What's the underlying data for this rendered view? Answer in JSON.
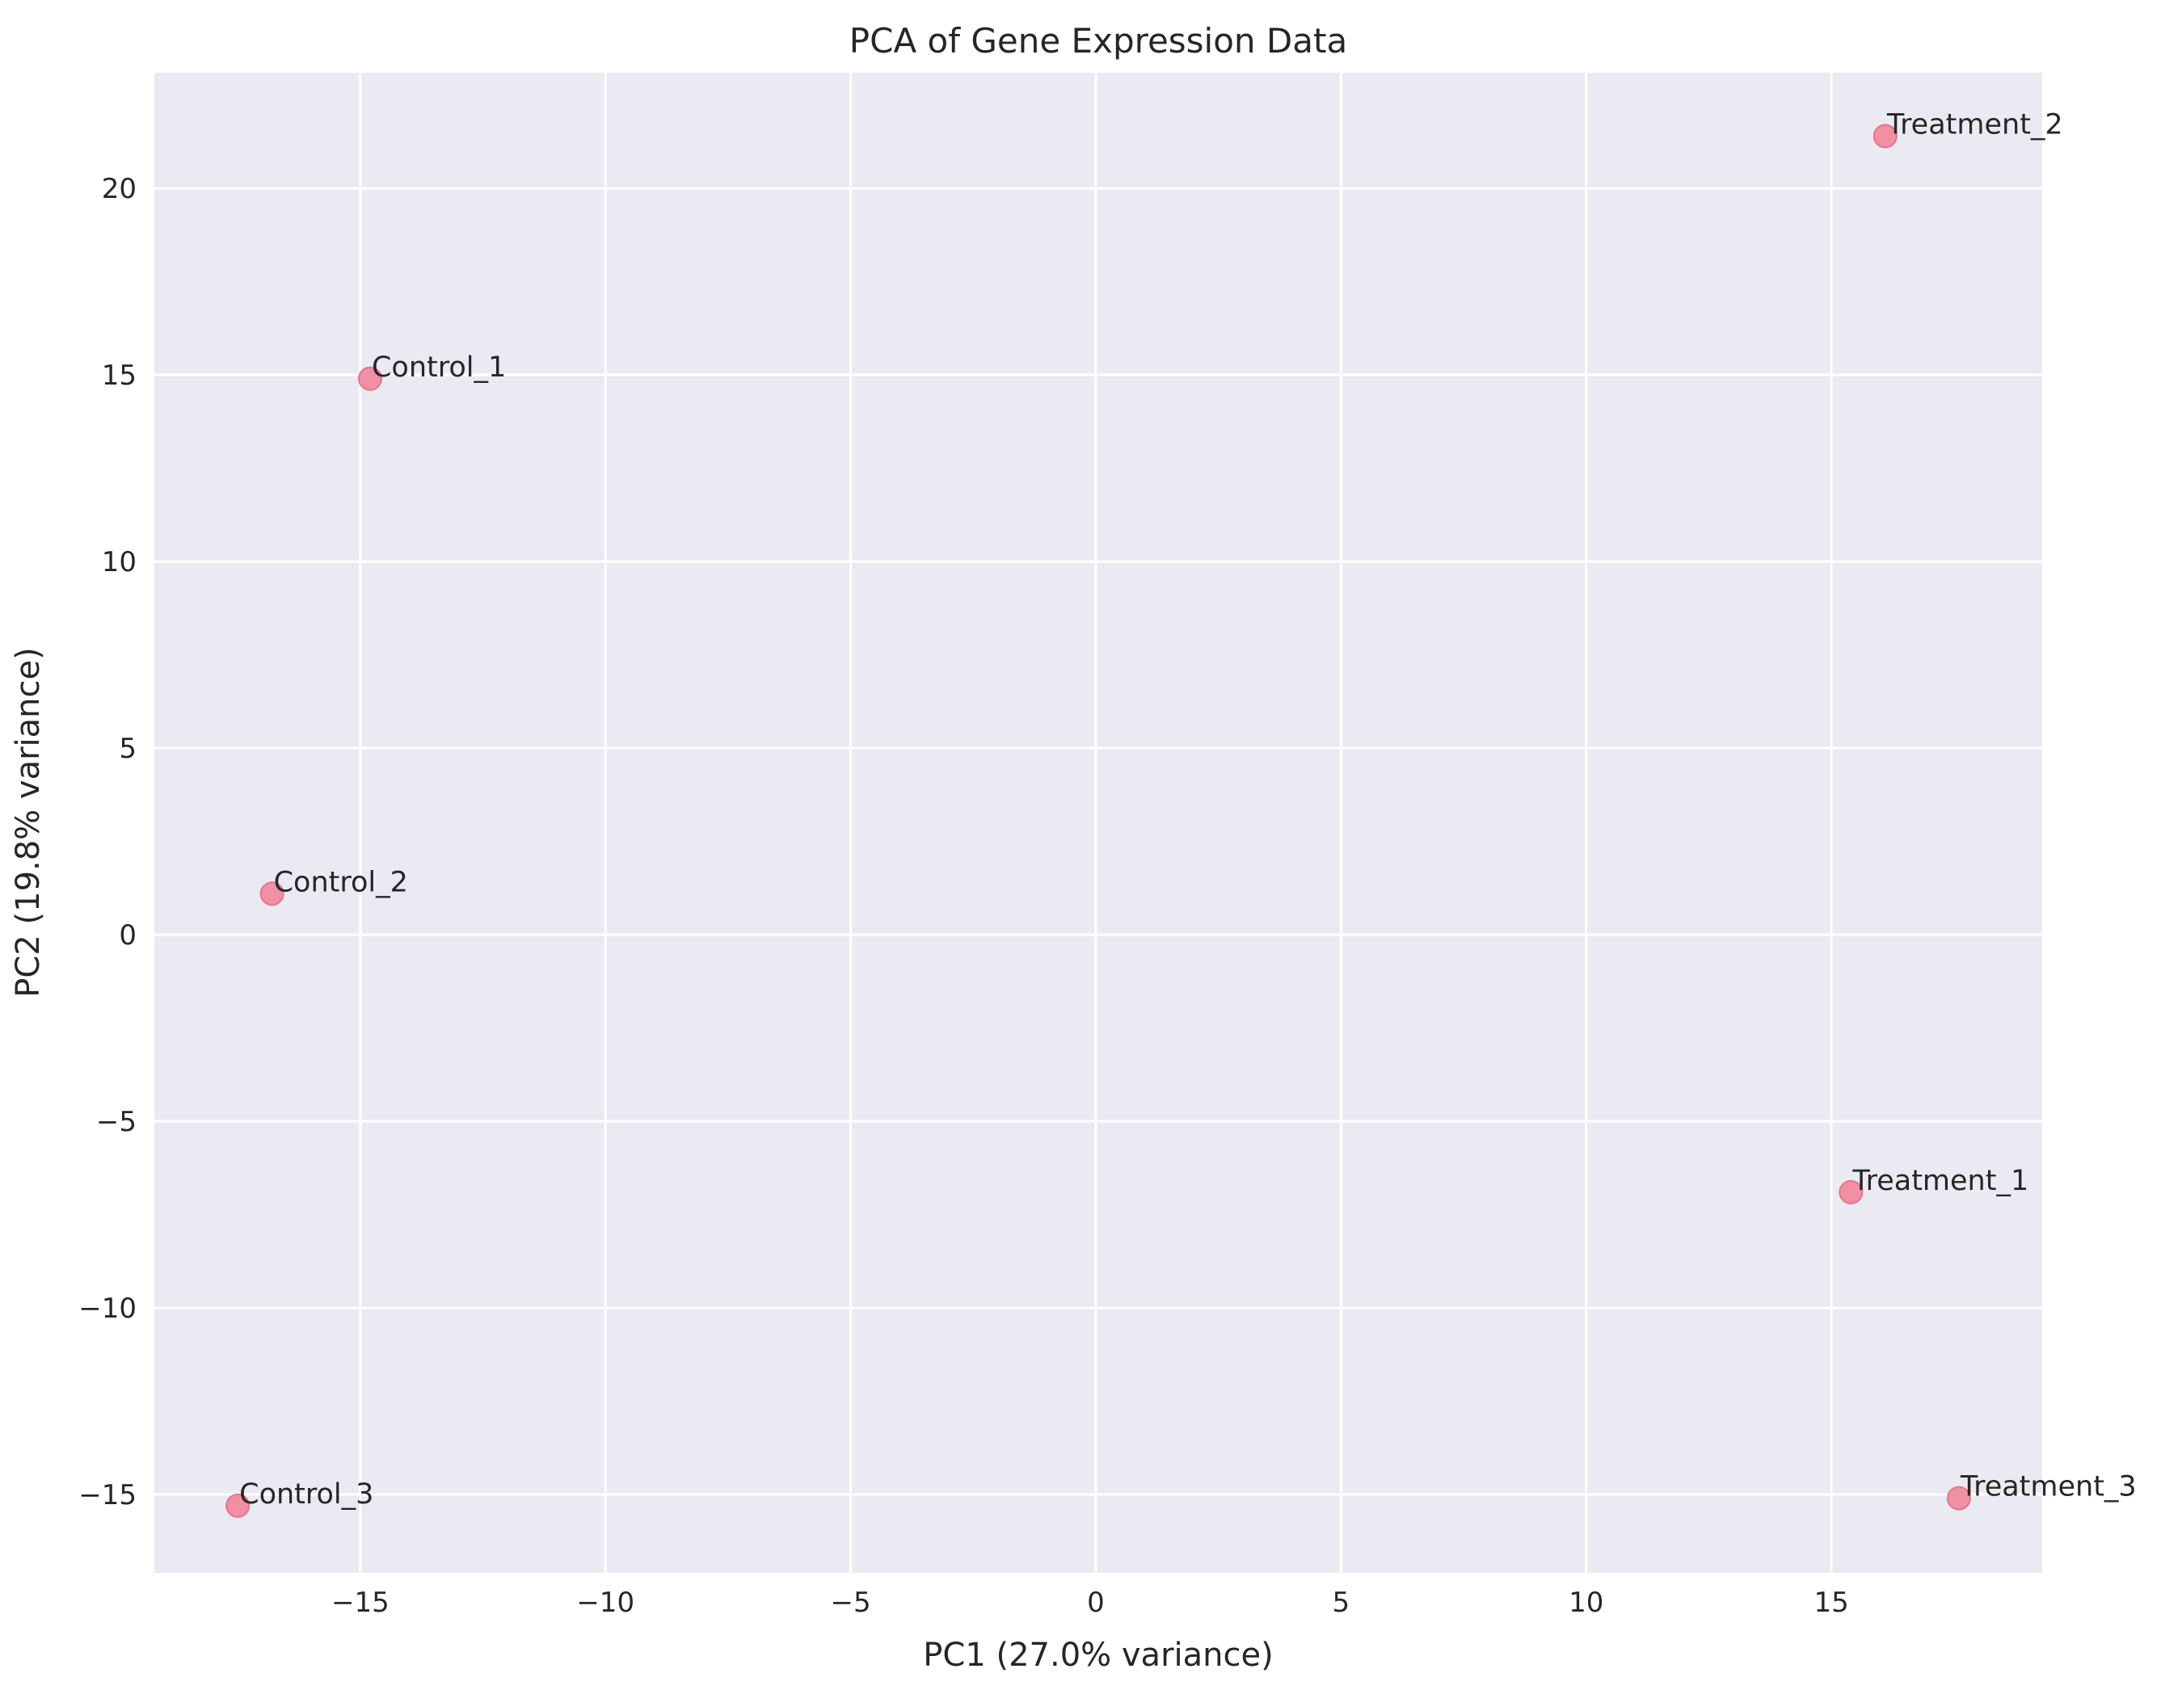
{
  "chart_data": {
    "type": "scatter",
    "title": "PCA of Gene Expression Data",
    "xlabel": "PC1 (27.0% variance)",
    "ylabel": "PC2 (19.8% variance)",
    "xlim": [
      -19.2,
      19.3
    ],
    "ylim": [
      -17.1,
      23.1
    ],
    "xticks": [
      -15,
      -10,
      -5,
      0,
      5,
      10,
      15
    ],
    "yticks": [
      -15,
      -10,
      -5,
      0,
      5,
      10,
      15,
      20
    ],
    "grid": true,
    "points": [
      {
        "label": "Control_1",
        "x": -14.8,
        "y": 14.9
      },
      {
        "label": "Control_2",
        "x": -16.8,
        "y": 1.1
      },
      {
        "label": "Control_3",
        "x": -17.5,
        "y": -15.3
      },
      {
        "label": "Treatment_1",
        "x": 15.4,
        "y": -6.9
      },
      {
        "label": "Treatment_2",
        "x": 16.1,
        "y": 21.4
      },
      {
        "label": "Treatment_3",
        "x": 17.6,
        "y": -15.1
      }
    ],
    "colors": {
      "background": "#eaeaf2",
      "grid": "#ffffff",
      "marker": "#f18fa3",
      "marker_edge": "#e7748c",
      "text": "#262626"
    }
  }
}
